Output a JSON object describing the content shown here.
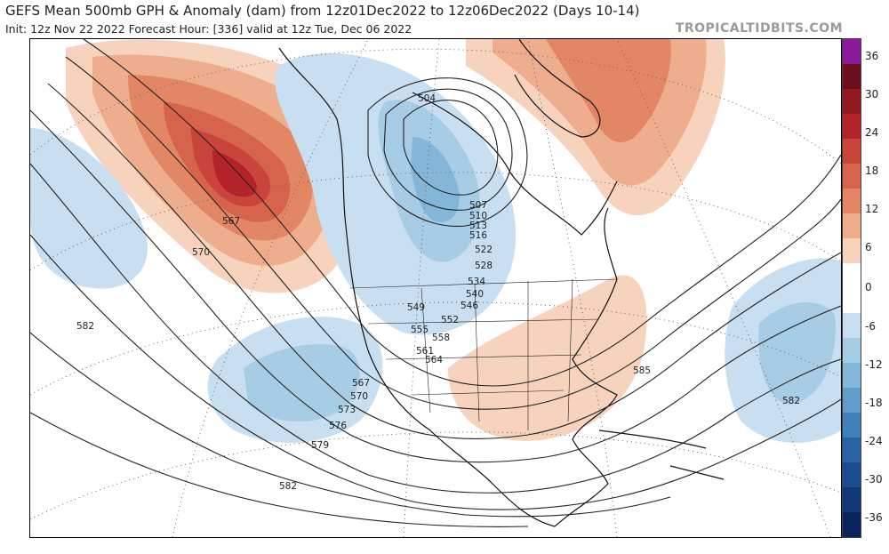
{
  "header": {
    "title": "GEFS Mean 500mb GPH & Anomaly (dam) from 12z01Dec2022 to 12z06Dec2022 (Days 10-14)",
    "subtitle": "Init: 12z Nov 22 2022   Forecast Hour: [336]   valid at 12z Tue, Dec 06 2022",
    "brand": "TROPICALTIDBITS.COM"
  },
  "colorbar": {
    "labels": [
      "36",
      "30",
      "24",
      "18",
      "12",
      "6",
      "0",
      "-6",
      "-12",
      "-18",
      "-24",
      "-30",
      "-36"
    ],
    "colors": [
      "#8b1a9b",
      "#6b0f1f",
      "#8f1821",
      "#b4232b",
      "#c9443a",
      "#d6634b",
      "#e28665",
      "#eeae8e",
      "#f7d3bd",
      "#ffffff",
      "#ffffff",
      "#c7dff0",
      "#a6cce6",
      "#84b6da",
      "#5f9cca",
      "#3f7fba",
      "#2963a6",
      "#1b4a8f",
      "#123777",
      "#0c245e"
    ]
  },
  "map": {
    "contour_labels": [
      "504",
      "507",
      "510",
      "513",
      "516",
      "522",
      "528",
      "534",
      "540",
      "546",
      "549",
      "552",
      "555",
      "558",
      "561",
      "564",
      "567",
      "570",
      "573",
      "576",
      "579",
      "582",
      "585",
      "567",
      "570",
      "582",
      "582",
      "582"
    ],
    "anomalies": [
      {
        "sign": "positive",
        "region": "Gulf of Alaska / Pacific Northwest ridge",
        "peak": 30
      },
      {
        "sign": "positive",
        "region": "Greenland / North Atlantic ridge",
        "peak": 18
      },
      {
        "sign": "positive",
        "region": "Southern and Eastern United States",
        "peak": 6
      },
      {
        "sign": "negative",
        "region": "Hudson Bay / Central Canada trough",
        "peak": -12
      },
      {
        "sign": "negative",
        "region": "Eastern Pacific off Baja California",
        "peak": -12
      },
      {
        "sign": "negative",
        "region": "Western Atlantic",
        "peak": -12
      },
      {
        "sign": "negative",
        "region": "Central North Pacific",
        "peak": -6
      }
    ]
  }
}
